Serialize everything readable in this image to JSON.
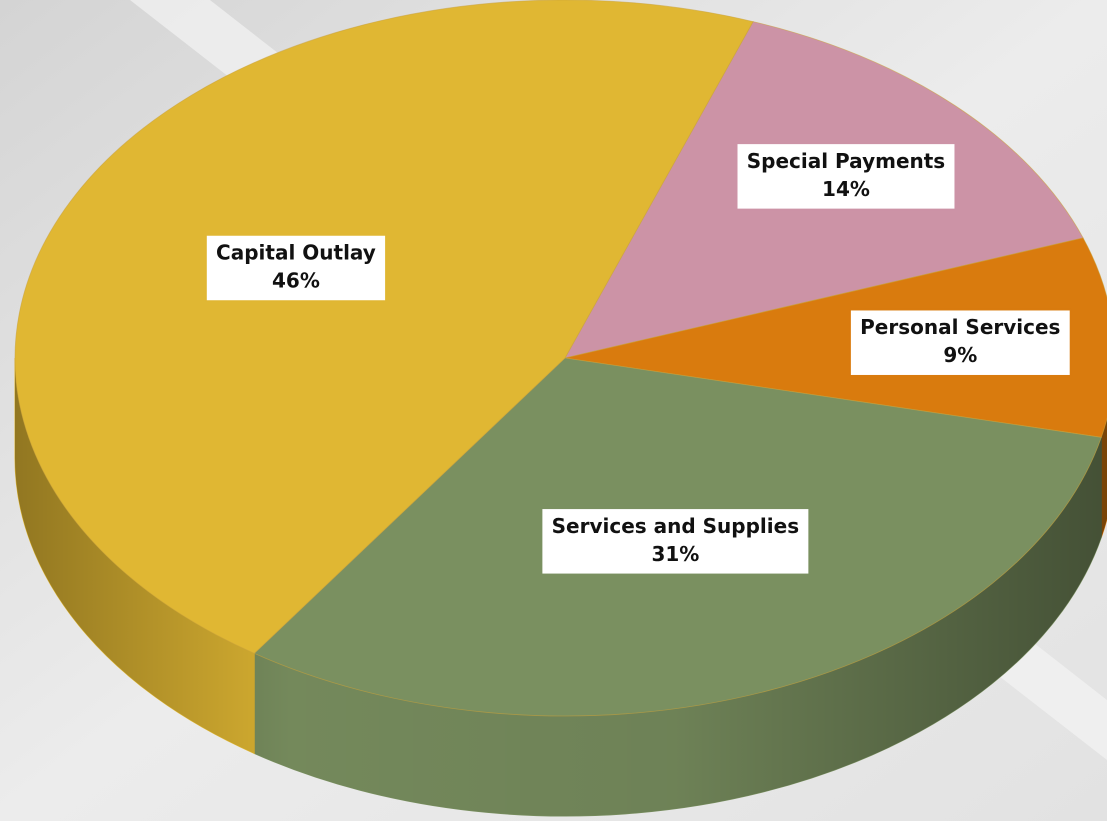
{
  "chart_data": {
    "type": "pie",
    "categories": [
      "Special Payments",
      "Personal Services",
      "Services and Supplies",
      "Capital Outlay"
    ],
    "values": [
      14,
      9,
      31,
      46
    ],
    "value_labels": [
      "14%",
      "9%",
      "31%",
      "46%"
    ],
    "colors": [
      "#cc93a6",
      "#d97b0e",
      "#7a9060",
      "#e0b733"
    ]
  }
}
